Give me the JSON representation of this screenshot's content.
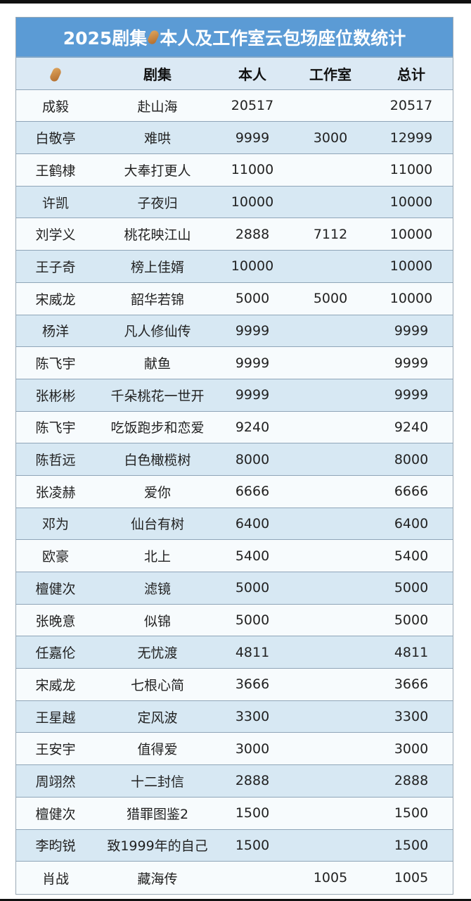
{
  "title": {
    "pre": "2025剧集",
    "post": "本人及工作室云包场座位数统计",
    "icon": "peanut-icon"
  },
  "headers": {
    "icon": "peanut-icon",
    "series": "剧集",
    "self": "本人",
    "studio": "工作室",
    "total": "总计"
  },
  "rows": [
    {
      "name": "成毅",
      "series": "赴山海",
      "self": "20517",
      "studio": "",
      "total": "20517"
    },
    {
      "name": "白敬亭",
      "series": "难哄",
      "self": "9999",
      "studio": "3000",
      "total": "12999"
    },
    {
      "name": "王鹤棣",
      "series": "大奉打更人",
      "self": "11000",
      "studio": "",
      "total": "11000"
    },
    {
      "name": "许凯",
      "series": "子夜归",
      "self": "10000",
      "studio": "",
      "total": "10000"
    },
    {
      "name": "刘学义",
      "series": "桃花映江山",
      "self": "2888",
      "studio": "7112",
      "total": "10000"
    },
    {
      "name": "王子奇",
      "series": "榜上佳婿",
      "self": "10000",
      "studio": "",
      "total": "10000"
    },
    {
      "name": "宋威龙",
      "series": "韶华若锦",
      "self": "5000",
      "studio": "5000",
      "total": "10000"
    },
    {
      "name": "杨洋",
      "series": "凡人修仙传",
      "self": "9999",
      "studio": "",
      "total": "9999"
    },
    {
      "name": "陈飞宇",
      "series": "献鱼",
      "self": "9999",
      "studio": "",
      "total": "9999"
    },
    {
      "name": "张彬彬",
      "series": "千朵桃花一世开",
      "self": "9999",
      "studio": "",
      "total": "9999"
    },
    {
      "name": "陈飞宇",
      "series": "吃饭跑步和恋爱",
      "self": "9240",
      "studio": "",
      "total": "9240"
    },
    {
      "name": "陈哲远",
      "series": "白色橄榄树",
      "self": "8000",
      "studio": "",
      "total": "8000"
    },
    {
      "name": "张凌赫",
      "series": "爱你",
      "self": "6666",
      "studio": "",
      "total": "6666"
    },
    {
      "name": "邓为",
      "series": "仙台有树",
      "self": "6400",
      "studio": "",
      "total": "6400"
    },
    {
      "name": "欧豪",
      "series": "北上",
      "self": "5400",
      "studio": "",
      "total": "5400"
    },
    {
      "name": "檀健次",
      "series": "滤镜",
      "self": "5000",
      "studio": "",
      "total": "5000"
    },
    {
      "name": "张晚意",
      "series": "似锦",
      "self": "5000",
      "studio": "",
      "total": "5000"
    },
    {
      "name": "任嘉伦",
      "series": "无忧渡",
      "self": "4811",
      "studio": "",
      "total": "4811"
    },
    {
      "name": "宋威龙",
      "series": "七根心简",
      "self": "3666",
      "studio": "",
      "total": "3666"
    },
    {
      "name": "王星越",
      "series": "定风波",
      "self": "3300",
      "studio": "",
      "total": "3300"
    },
    {
      "name": "王安宇",
      "series": "值得爱",
      "self": "3000",
      "studio": "",
      "total": "3000"
    },
    {
      "name": "周翊然",
      "series": "十二封信",
      "self": "2888",
      "studio": "",
      "total": "2888"
    },
    {
      "name": "檀健次",
      "series": "猎罪图鉴2",
      "self": "1500",
      "studio": "",
      "total": "1500"
    },
    {
      "name": "李昀锐",
      "series": "致1999年的自己",
      "self": "1500",
      "studio": "",
      "total": "1500"
    },
    {
      "name": "肖战",
      "series": "藏海传",
      "self": "",
      "studio": "1005",
      "total": "1005"
    }
  ]
}
